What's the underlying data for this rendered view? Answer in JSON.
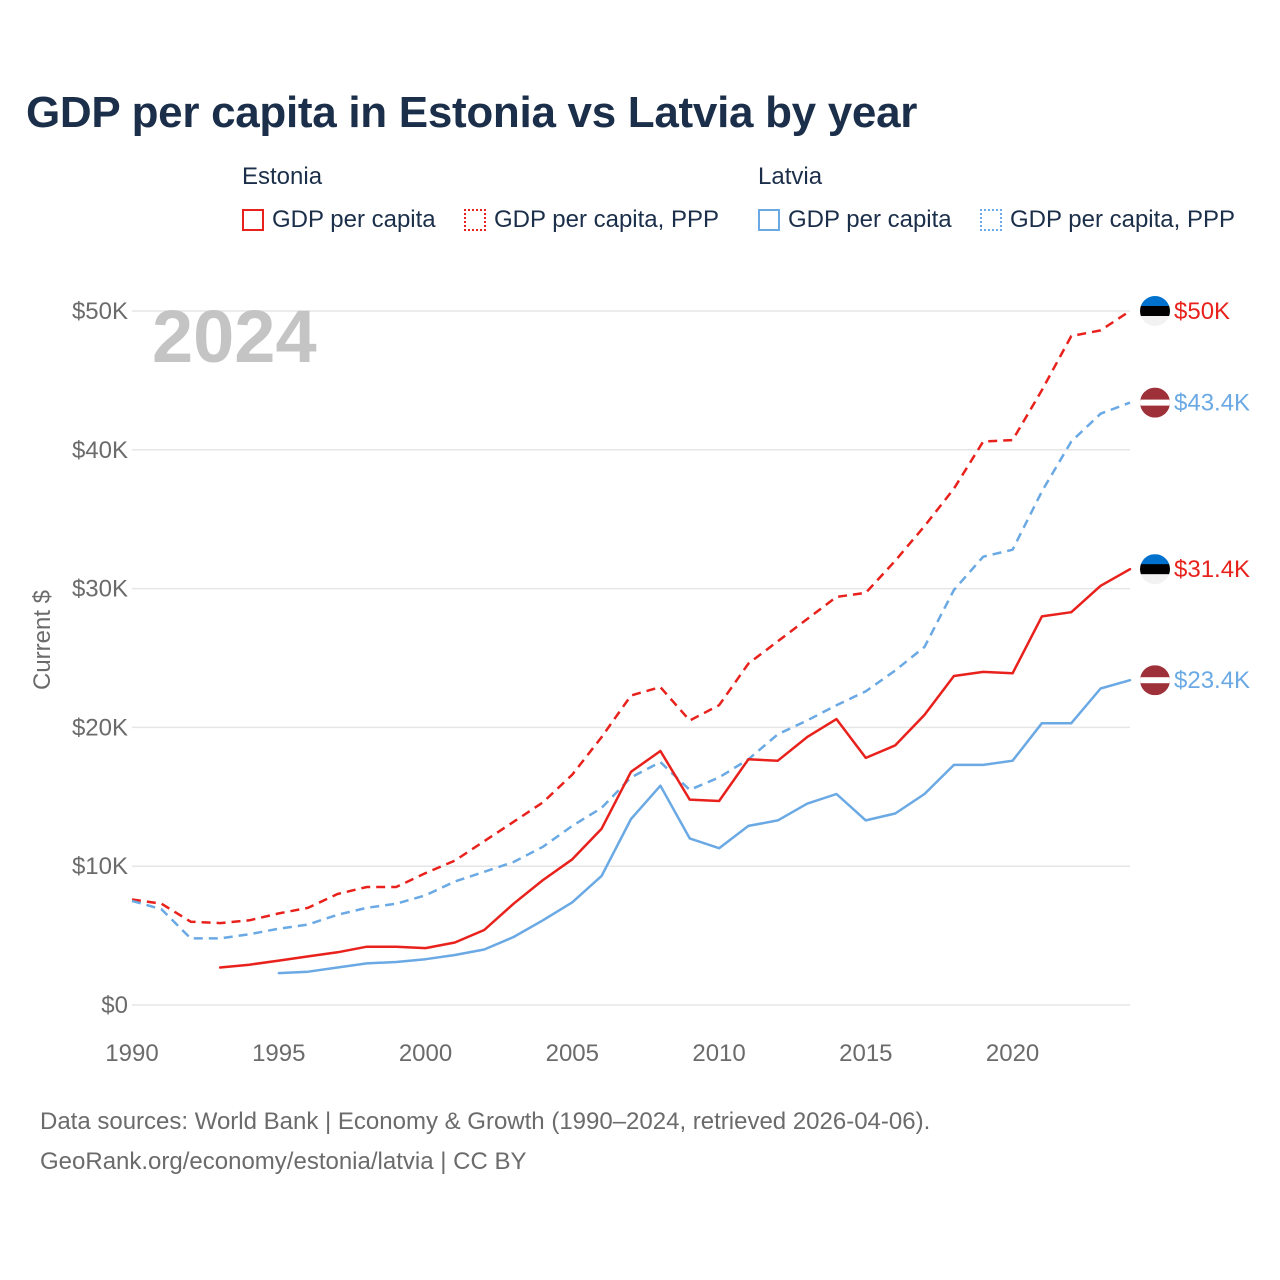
{
  "chart_data": {
    "type": "line",
    "title": "GDP per capita in Estonia vs Latvia by year",
    "year_label": "2024",
    "ylabel": "Current $",
    "xlabel": "",
    "xlim": [
      1990,
      2024
    ],
    "ylim": [
      0,
      50000
    ],
    "x_ticks": [
      1990,
      1995,
      2000,
      2005,
      2010,
      2015,
      2020
    ],
    "y_ticks": [
      {
        "value": 0,
        "label": "$0"
      },
      {
        "value": 10000,
        "label": "$10K"
      },
      {
        "value": 20000,
        "label": "$20K"
      },
      {
        "value": 30000,
        "label": "$30K"
      },
      {
        "value": 40000,
        "label": "$40K"
      },
      {
        "value": 50000,
        "label": "$50K"
      }
    ],
    "grid": true,
    "legend": {
      "groups": [
        {
          "name": "Estonia",
          "items": [
            "GDP per capita",
            "GDP per capita, PPP"
          ]
        },
        {
          "name": "Latvia",
          "items": [
            "GDP per capita",
            "GDP per capita, PPP"
          ]
        }
      ]
    },
    "series": [
      {
        "name": "Estonia GDP per capita, PPP",
        "country": "Estonia",
        "color": "#e8211c",
        "dashed": true,
        "end_label": "$50K",
        "x": [
          1990,
          1991,
          1992,
          1993,
          1994,
          1995,
          1996,
          1997,
          1998,
          1999,
          2000,
          2001,
          2002,
          2003,
          2004,
          2005,
          2006,
          2007,
          2008,
          2009,
          2010,
          2011,
          2012,
          2013,
          2014,
          2015,
          2016,
          2017,
          2018,
          2019,
          2020,
          2021,
          2022,
          2023,
          2024
        ],
        "values": [
          7600,
          7300,
          6000,
          5900,
          6100,
          6600,
          7000,
          8000,
          8500,
          8500,
          9500,
          10400,
          11800,
          13200,
          14600,
          16600,
          19300,
          22300,
          22900,
          20500,
          21600,
          24600,
          26200,
          27800,
          29400,
          29700,
          32000,
          34500,
          37200,
          40600,
          40700,
          44300,
          48200,
          48600,
          50000
        ]
      },
      {
        "name": "Latvia GDP per capita, PPP",
        "country": "Latvia",
        "color": "#6aa9e4",
        "dashed": true,
        "end_label": "$43.4K",
        "x": [
          1990,
          1991,
          1992,
          1993,
          1994,
          1995,
          1996,
          1997,
          1998,
          1999,
          2000,
          2001,
          2002,
          2003,
          2004,
          2005,
          2006,
          2007,
          2008,
          2009,
          2010,
          2011,
          2012,
          2013,
          2014,
          2015,
          2016,
          2017,
          2018,
          2019,
          2020,
          2021,
          2022,
          2023,
          2024
        ],
        "values": [
          7500,
          6900,
          4800,
          4800,
          5100,
          5500,
          5800,
          6500,
          7000,
          7300,
          7900,
          8900,
          9600,
          10300,
          11400,
          12900,
          14200,
          16400,
          17500,
          15500,
          16400,
          17700,
          19500,
          20500,
          21600,
          22600,
          24100,
          25800,
          29900,
          32300,
          32800,
          37000,
          40600,
          42600,
          43400
        ]
      },
      {
        "name": "Estonia GDP per capita",
        "country": "Estonia",
        "color": "#e8211c",
        "dashed": false,
        "end_label": "$31.4K",
        "x": [
          1993,
          1994,
          1995,
          1996,
          1997,
          1998,
          1999,
          2000,
          2001,
          2002,
          2003,
          2004,
          2005,
          2006,
          2007,
          2008,
          2009,
          2010,
          2011,
          2012,
          2013,
          2014,
          2015,
          2016,
          2017,
          2018,
          2019,
          2020,
          2021,
          2022,
          2023,
          2024
        ],
        "values": [
          2700,
          2900,
          3200,
          3500,
          3800,
          4200,
          4200,
          4100,
          4500,
          5400,
          7300,
          9000,
          10500,
          12700,
          16800,
          18300,
          14800,
          14700,
          17700,
          17600,
          19300,
          20600,
          17800,
          18700,
          20900,
          23700,
          24000,
          23900,
          28000,
          28300,
          30200,
          31400
        ]
      },
      {
        "name": "Latvia GDP per capita",
        "country": "Latvia",
        "color": "#6aa9e4",
        "dashed": false,
        "end_label": "$23.4K",
        "x": [
          1995,
          1996,
          1997,
          1998,
          1999,
          2000,
          2001,
          2002,
          2003,
          2004,
          2005,
          2006,
          2007,
          2008,
          2009,
          2010,
          2011,
          2012,
          2013,
          2014,
          2015,
          2016,
          2017,
          2018,
          2019,
          2020,
          2021,
          2022,
          2023,
          2024
        ],
        "values": [
          2300,
          2400,
          2700,
          3000,
          3100,
          3300,
          3600,
          4000,
          4900,
          6100,
          7400,
          9300,
          13400,
          15800,
          12000,
          11300,
          12900,
          13300,
          14500,
          15200,
          13300,
          13800,
          15200,
          17300,
          17300,
          17600,
          20300,
          20300,
          22800,
          23400
        ]
      }
    ]
  },
  "footer": {
    "source_line": "Data sources: World Bank | Economy & Growth (1990–2024, retrieved 2026-04-06).",
    "credit_line": "GeoRank.org/economy/estonia/latvia | CC BY"
  },
  "colors": {
    "estonia": "#e8211c",
    "latvia": "#6aa9e4",
    "title": "#1b2f4a",
    "axis_text": "#6b6b6b",
    "grid": "#e6e6e6",
    "watermark_year": "#c4c4c4"
  },
  "flags": {
    "estonia": [
      "#0072ce",
      "#000000",
      "#f2f2f2"
    ],
    "latvia": [
      "#9e3039",
      "#ffffff",
      "#9e3039"
    ]
  }
}
